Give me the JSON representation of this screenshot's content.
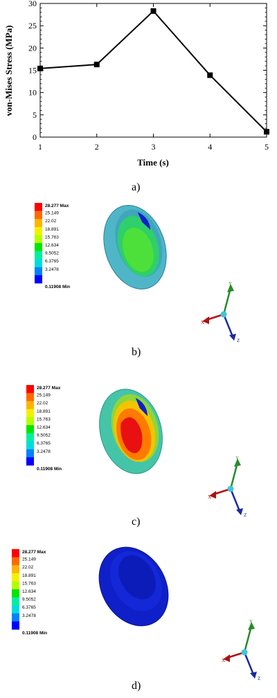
{
  "chart_data": {
    "type": "line",
    "x": [
      1,
      2,
      3,
      4,
      5
    ],
    "values": [
      15.4,
      16.3,
      28.3,
      13.9,
      1.2
    ],
    "xlabel": "Time (s)",
    "ylabel": "von-Mises Stress (MPa)",
    "xlim": [
      1,
      5
    ],
    "ylim": [
      0,
      30
    ],
    "xticks": [
      "1",
      "2",
      "3",
      "4",
      "5"
    ],
    "yticks": [
      "0",
      "5",
      "10",
      "15",
      "20",
      "25",
      "30"
    ],
    "marker": "square",
    "color": "#000000"
  },
  "panels": {
    "a": "a)",
    "b": "b)",
    "c": "c)",
    "d": "d)"
  },
  "legend": {
    "max": "28.277 Max",
    "min": "0.11908 Min",
    "levels": [
      "25.149",
      "22.02",
      "18.891",
      "15.763",
      "12.634",
      "9.5052",
      "6.3765",
      "3.2478"
    ],
    "colors": [
      "#ff0000",
      "#ff6a00",
      "#ffb400",
      "#f2f200",
      "#b4ff00",
      "#00e600",
      "#00f0a0",
      "#00dcdc",
      "#0082ff",
      "#0000ff"
    ]
  },
  "axes_triad": {
    "x": "X",
    "y": "Y",
    "z": "Z"
  }
}
